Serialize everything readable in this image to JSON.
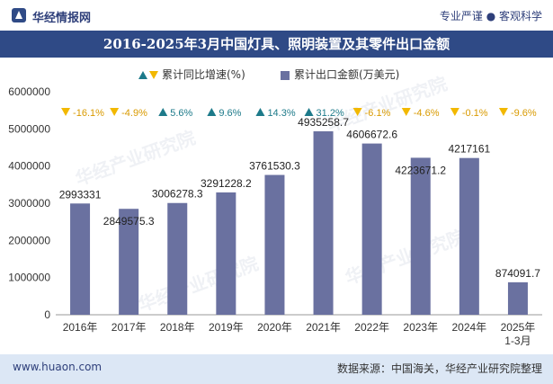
{
  "header": {
    "brand": "华经情报网",
    "slogan": "专业严谨 ● 客观科学"
  },
  "title": "2016-2025年3月中国灯具、照明装置及其零件出口金额",
  "legend": {
    "growth_label": "累计同比增速(%)",
    "export_label": "累计出口金额(万美元)"
  },
  "footer": {
    "site": "www.huaon.com",
    "source": "数据来源：中国海关，华经产业研究院整理"
  },
  "watermark": "华经产业研究院",
  "colors": {
    "bar": "#6a71a0",
    "up": "#1d7a8a",
    "down": "#f2b800",
    "header_bg": "#2f4a86",
    "footer_bg": "#dce7f5"
  },
  "chart_data": {
    "type": "bar",
    "categories": [
      "2016年",
      "2017年",
      "2018年",
      "2019年",
      "2020年",
      "2021年",
      "2022年",
      "2023年",
      "2024年",
      "2025年\n1-3月"
    ],
    "series": [
      {
        "name": "累计出口金额(万美元)",
        "values": [
          2993331,
          2849575.3,
          3006278.3,
          3291228.2,
          3761530.3,
          4935258.7,
          4606672.6,
          4223671.2,
          4217161,
          874091.7
        ],
        "labels": [
          "2993331",
          "2849575.3",
          "3006278.3",
          "3291228.2",
          "3761530.3",
          "4935258.7",
          "4606672.6",
          "4223671.2",
          "4217161",
          "874091.7"
        ]
      },
      {
        "name": "累计同比增速(%)",
        "values": [
          -16.1,
          -4.9,
          5.6,
          9.6,
          14.3,
          31.2,
          -6.1,
          -4.6,
          -0.1,
          -9.6
        ],
        "labels": [
          "-16.1%",
          "-4.9%",
          "5.6%",
          "9.6%",
          "14.3%",
          "31.2%",
          "-6.1%",
          "-4.6%",
          "-0.1%",
          "-9.6%"
        ]
      }
    ],
    "ylim": [
      0,
      6000000
    ],
    "yticks": [
      "0",
      "1000000",
      "2000000",
      "3000000",
      "4000000",
      "5000000",
      "6000000"
    ],
    "grid": false
  }
}
